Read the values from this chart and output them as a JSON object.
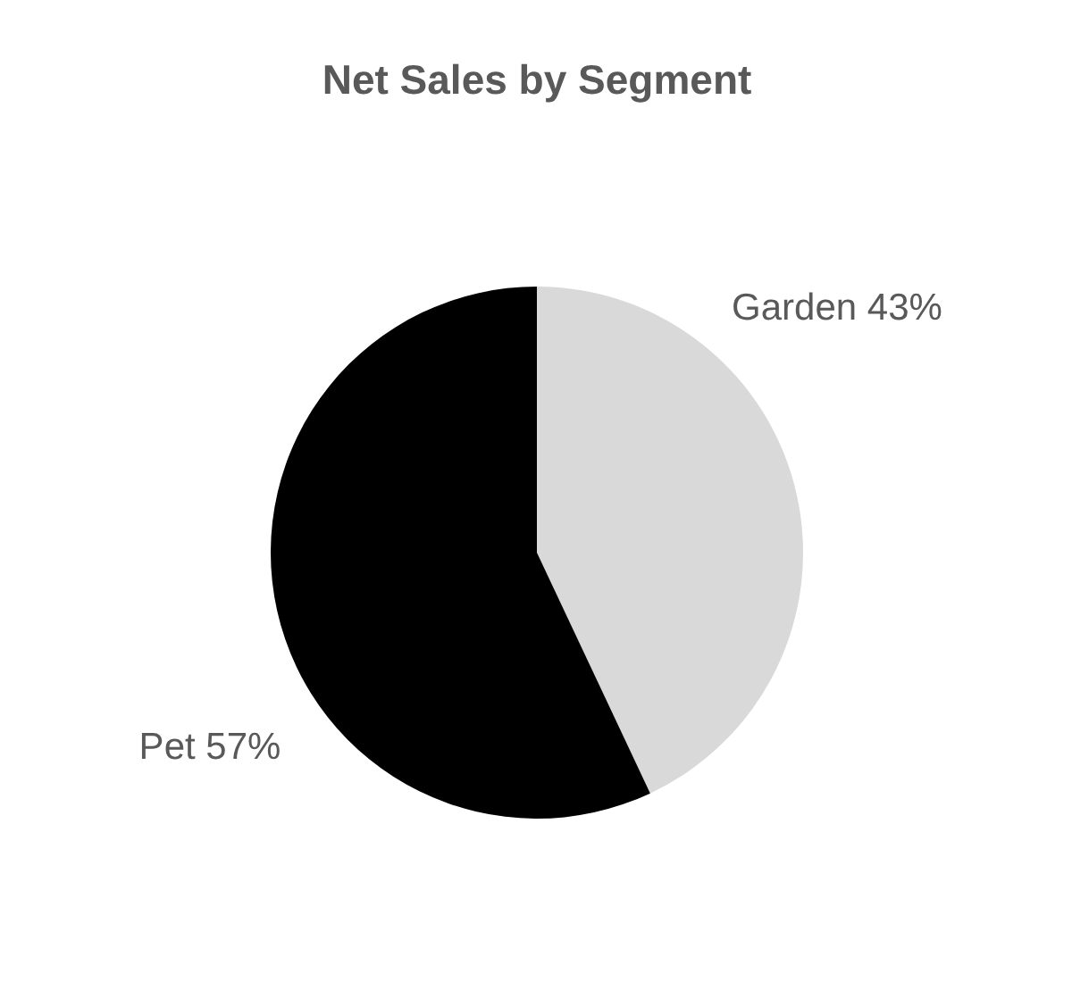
{
  "chart_data": {
    "type": "pie",
    "title": "Net Sales by Segment",
    "categories": [
      "Garden",
      "Pet"
    ],
    "values": [
      43,
      57
    ],
    "colors": [
      "#d9d9d9",
      "#000000"
    ],
    "value_labels": [
      "43%",
      "57%"
    ],
    "legend": false
  }
}
